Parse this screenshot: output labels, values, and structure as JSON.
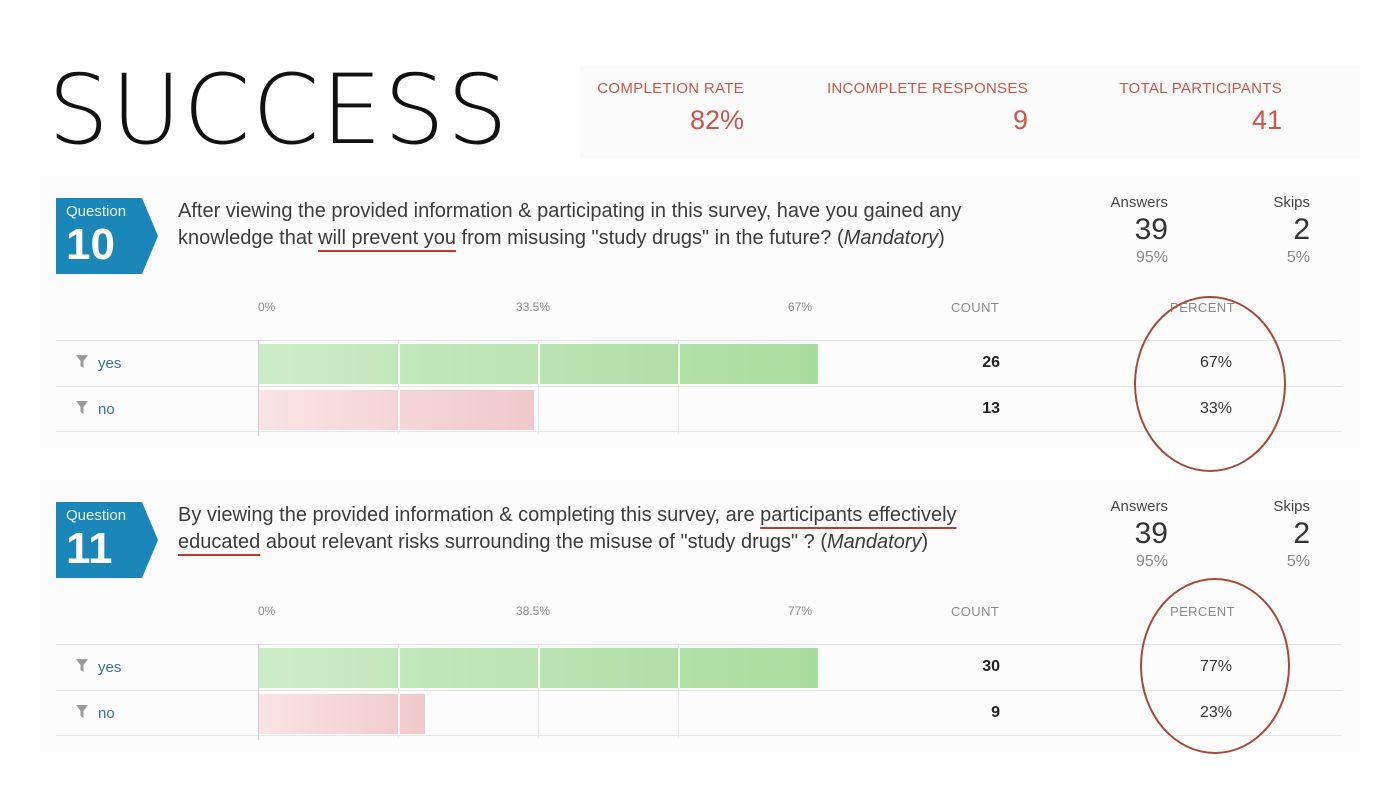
{
  "headline": "SUCCESS",
  "stats": [
    {
      "label": "COMPLETION RATE",
      "value": "82%"
    },
    {
      "label": "INCOMPLETE RESPONSES",
      "value": "9"
    },
    {
      "label": "TOTAL PARTICIPANTS",
      "value": "41"
    }
  ],
  "questions": [
    {
      "badge_word": "Question",
      "number": "10",
      "text_a": "After viewing the provided information & participating in this survey, have you gained any knowledge that ",
      "text_u1": "will prevent you",
      "text_b": " from misusing \"study drugs\" in the future? (",
      "text_em": "Mandatory",
      "text_c": ")",
      "answers_label": "Answers",
      "answers_value": "39",
      "answers_pct": "95%",
      "skips_label": "Skips",
      "skips_value": "2",
      "skips_pct": "5%",
      "axis": [
        "0%",
        "33.5%",
        "67%"
      ],
      "count_header": "COUNT",
      "percent_header": "PERCENT",
      "rows": [
        {
          "answer": "yes",
          "count": "26",
          "percent": "67%",
          "fraction": 0.67
        },
        {
          "answer": "no",
          "count": "13",
          "percent": "33%",
          "fraction": 0.33
        }
      ]
    },
    {
      "badge_word": "Question",
      "number": "11",
      "text_a": "By viewing the provided information & completing this survey, are ",
      "text_u1": "participants effectively educated",
      "text_b": " about relevant risks surrounding the misuse of \"study drugs\" ? (",
      "text_em": "Mandatory",
      "text_c": ")",
      "answers_label": "Answers",
      "answers_value": "39",
      "answers_pct": "95%",
      "skips_label": "Skips",
      "skips_value": "2",
      "skips_pct": "5%",
      "axis": [
        "0%",
        "38.5%",
        "77%"
      ],
      "count_header": "COUNT",
      "percent_header": "PERCENT",
      "rows": [
        {
          "answer": "yes",
          "count": "30",
          "percent": "77%",
          "fraction": 0.77
        },
        {
          "answer": "no",
          "count": "9",
          "percent": "23%",
          "fraction": 0.23
        }
      ]
    }
  ],
  "colors": {
    "badge": "#1b87b8",
    "accent_red": "#c9574a",
    "bar_yes": "#a8dc9c",
    "bar_no": "#f1c9cb",
    "circle": "#a64b36"
  },
  "icons": {
    "filter": "filter-icon"
  }
}
